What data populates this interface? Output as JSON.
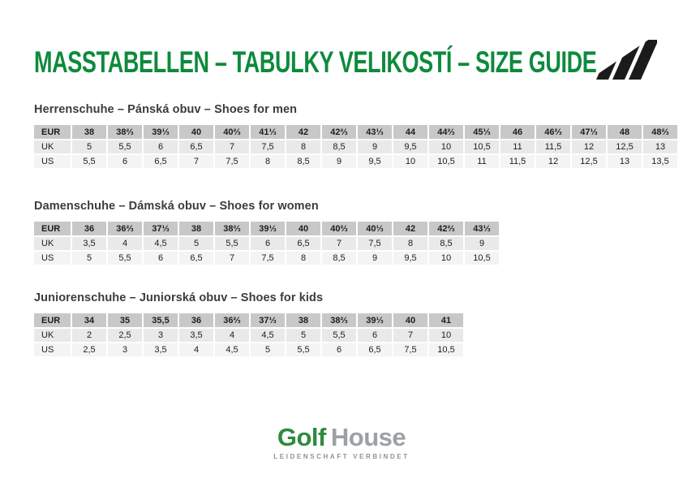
{
  "header": {
    "title": "MASSTABELLEN – TABULKY VELIKOSTÍ – SIZE GUIDE"
  },
  "logos": {
    "adidas": "adidas-three-stripes",
    "golfhouse": {
      "word1": "Golf",
      "word2": "House",
      "tagline": "LEIDENSCHAFT VERBINDET"
    }
  },
  "colors": {
    "accent": "#0e8a3c",
    "header_bg": "#c8c8c8",
    "row1_bg": "#e9e9e9",
    "row2_bg": "#f4f4f4",
    "logo_green": "#2f8a3e",
    "logo_gray": "#9da1a4"
  },
  "tables": [
    {
      "heading": "Herrenschuhe – Pánská obuv – Shoes for men",
      "rows": [
        {
          "label": "EUR",
          "values": [
            "38",
            "38⅔",
            "39⅓",
            "40",
            "40⅔",
            "41⅓",
            "42",
            "42⅔",
            "43⅓",
            "44",
            "44⅔",
            "45⅓",
            "46",
            "46⅔",
            "47⅓",
            "48",
            "48⅔"
          ]
        },
        {
          "label": "UK",
          "values": [
            "5",
            "5,5",
            "6",
            "6,5",
            "7",
            "7,5",
            "8",
            "8,5",
            "9",
            "9,5",
            "10",
            "10,5",
            "11",
            "11,5",
            "12",
            "12,5",
            "13"
          ]
        },
        {
          "label": "US",
          "values": [
            "5,5",
            "6",
            "6,5",
            "7",
            "7,5",
            "8",
            "8,5",
            "9",
            "9,5",
            "10",
            "10,5",
            "11",
            "11,5",
            "12",
            "12,5",
            "13",
            "13,5"
          ]
        }
      ]
    },
    {
      "heading": "Damenschuhe – Dámská obuv – Shoes for women",
      "rows": [
        {
          "label": "EUR",
          "values": [
            "36",
            "36⅔",
            "37⅓",
            "38",
            "38⅔",
            "39⅓",
            "40",
            "40⅔",
            "40⅓",
            "42",
            "42⅔",
            "43⅓"
          ]
        },
        {
          "label": "UK",
          "values": [
            "3,5",
            "4",
            "4,5",
            "5",
            "5,5",
            "6",
            "6,5",
            "7",
            "7,5",
            "8",
            "8,5",
            "9"
          ]
        },
        {
          "label": "US",
          "values": [
            "5",
            "5,5",
            "6",
            "6,5",
            "7",
            "7,5",
            "8",
            "8,5",
            "9",
            "9,5",
            "10",
            "10,5"
          ]
        }
      ]
    },
    {
      "heading": "Juniorenschuhe – Juniorská obuv – Shoes for kids",
      "rows": [
        {
          "label": "EUR",
          "values": [
            "34",
            "35",
            "35,5",
            "36",
            "36⅔",
            "37⅓",
            "38",
            "38⅔",
            "39⅓",
            "40",
            "41"
          ]
        },
        {
          "label": "UK",
          "values": [
            "2",
            "2,5",
            "3",
            "3,5",
            "4",
            "4,5",
            "5",
            "5,5",
            "6",
            "7",
            "10"
          ]
        },
        {
          "label": "US",
          "values": [
            "2,5",
            "3",
            "3,5",
            "4",
            "4,5",
            "5",
            "5,5",
            "6",
            "6,5",
            "7,5",
            "10,5"
          ]
        }
      ]
    }
  ]
}
